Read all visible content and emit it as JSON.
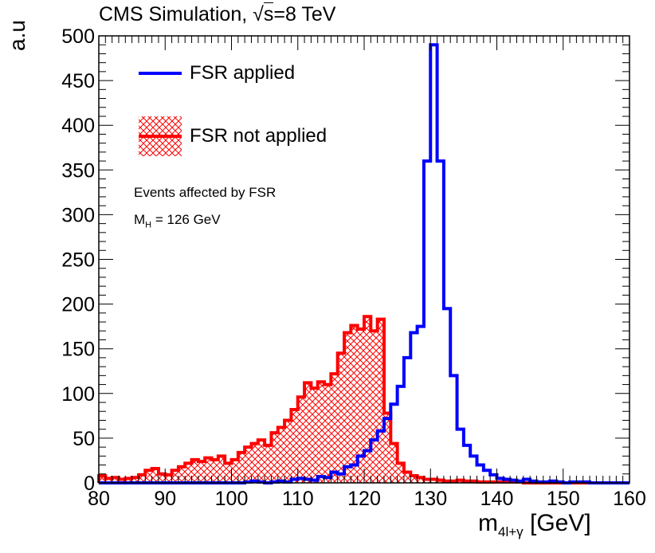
{
  "chart_data": {
    "type": "histogram",
    "title_prefix": "CMS Simulation, ",
    "title_sqrt": "s",
    "title_suffix": "=8 TeV",
    "ylabel": "a.u",
    "xlabel_main": "m",
    "xlabel_sub": "4l+γ",
    "xlabel_unit": " [GeV]",
    "xlim": [
      80,
      160
    ],
    "ylim": [
      0,
      500
    ],
    "xticks": [
      80,
      90,
      100,
      110,
      120,
      130,
      140,
      150,
      160
    ],
    "yticks": [
      0,
      50,
      100,
      150,
      200,
      250,
      300,
      350,
      400,
      450,
      500
    ],
    "bin_edges_start": 80,
    "bin_width": 1,
    "series": [
      {
        "name": "FSR applied",
        "color": "#0000ff",
        "style": "line",
        "values": [
          0,
          0,
          0,
          0,
          0,
          0,
          0,
          0,
          0,
          0,
          0,
          0,
          0,
          0,
          0,
          0,
          0,
          0,
          0,
          0,
          0,
          0,
          1,
          2,
          1,
          0,
          1,
          2,
          1,
          4,
          5,
          4,
          3,
          7,
          6,
          12,
          10,
          18,
          20,
          30,
          36,
          48,
          58,
          72,
          88,
          108,
          140,
          168,
          175,
          360,
          490,
          360,
          195,
          120,
          60,
          42,
          30,
          20,
          14,
          9,
          5,
          4,
          3,
          2,
          4,
          2,
          1,
          1,
          2,
          1,
          0,
          1,
          1,
          1,
          0,
          0,
          0,
          0,
          0,
          0
        ]
      },
      {
        "name": "FSR not applied",
        "color": "#ff0000",
        "hatch": "#ff0000",
        "style": "hatched",
        "values": [
          8,
          5,
          6,
          4,
          5,
          6,
          9,
          14,
          16,
          10,
          9,
          14,
          18,
          22,
          26,
          24,
          28,
          26,
          30,
          22,
          26,
          34,
          40,
          44,
          48,
          42,
          56,
          62,
          70,
          82,
          96,
          112,
          106,
          113,
          110,
          122,
          145,
          168,
          176,
          172,
          186,
          170,
          183,
          78,
          44,
          22,
          12,
          8,
          6,
          4,
          4,
          3,
          2,
          2,
          3,
          2,
          2,
          1,
          1,
          1,
          1,
          1,
          1,
          1,
          0,
          0,
          0,
          0,
          0,
          0,
          0,
          0,
          0,
          0,
          0,
          0,
          0,
          0,
          0,
          0
        ]
      }
    ],
    "legend": {
      "entries": [
        {
          "label": "FSR applied",
          "series": 0
        },
        {
          "label": "FSR not applied",
          "series": 1
        }
      ],
      "placement": "top-left"
    },
    "annotations": {
      "line1": "Events affected by FSR",
      "line2_main": "M",
      "line2_sub": "H",
      "line2_rest": " = 126 GeV"
    }
  }
}
